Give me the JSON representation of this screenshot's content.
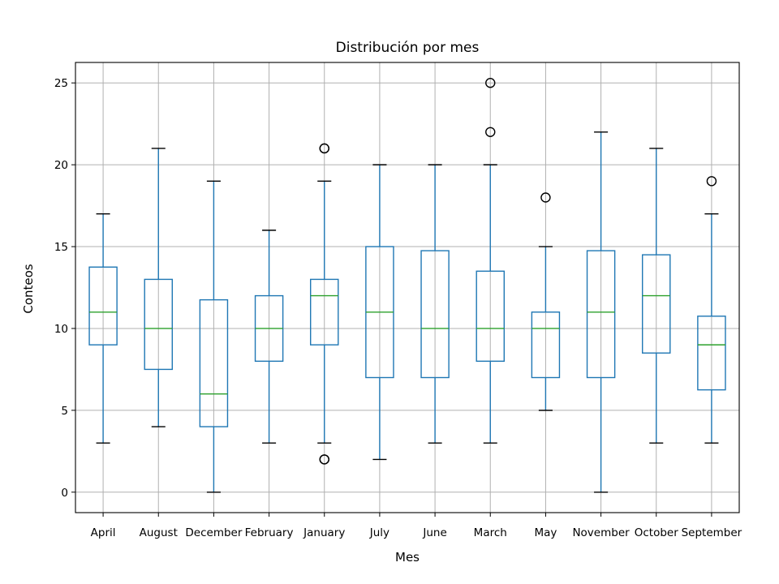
{
  "chart_data": {
    "type": "box",
    "title": "Distribución por mes",
    "xlabel": "Mes",
    "ylabel": "Conteos",
    "ylim": [
      -1.25,
      26.25
    ],
    "yticks": [
      0,
      5,
      10,
      15,
      20,
      25
    ],
    "grid": true,
    "categories": [
      "April",
      "August",
      "December",
      "February",
      "January",
      "July",
      "June",
      "March",
      "May",
      "November",
      "October",
      "September"
    ],
    "boxes": [
      {
        "whisker_low": 3,
        "q1": 9,
        "median": 11,
        "q3": 13.75,
        "whisker_high": 17,
        "outliers": []
      },
      {
        "whisker_low": 4,
        "q1": 7.5,
        "median": 10,
        "q3": 13,
        "whisker_high": 21,
        "outliers": []
      },
      {
        "whisker_low": 0,
        "q1": 4,
        "median": 6,
        "q3": 11.75,
        "whisker_high": 19,
        "outliers": []
      },
      {
        "whisker_low": 3,
        "q1": 8,
        "median": 10,
        "q3": 12,
        "whisker_high": 16,
        "outliers": []
      },
      {
        "whisker_low": 3,
        "q1": 9,
        "median": 12,
        "q3": 13,
        "whisker_high": 19,
        "outliers": [
          21,
          21,
          2,
          2
        ]
      },
      {
        "whisker_low": 2,
        "q1": 7,
        "median": 11,
        "q3": 15,
        "whisker_high": 20,
        "outliers": []
      },
      {
        "whisker_low": 3,
        "q1": 7,
        "median": 10,
        "q3": 14.75,
        "whisker_high": 20,
        "outliers": []
      },
      {
        "whisker_low": 3,
        "q1": 8,
        "median": 10,
        "q3": 13.5,
        "whisker_high": 20,
        "outliers": [
          25,
          22
        ]
      },
      {
        "whisker_low": 5,
        "q1": 7,
        "median": 10,
        "q3": 11,
        "whisker_high": 15,
        "outliers": [
          18
        ]
      },
      {
        "whisker_low": 0,
        "q1": 7,
        "median": 11,
        "q3": 14.75,
        "whisker_high": 22,
        "outliers": []
      },
      {
        "whisker_low": 3,
        "q1": 8.5,
        "median": 12,
        "q3": 14.5,
        "whisker_high": 21,
        "outliers": []
      },
      {
        "whisker_low": 3,
        "q1": 6.25,
        "median": 9,
        "q3": 10.75,
        "whisker_high": 17,
        "outliers": [
          19
        ]
      }
    ],
    "colors": {
      "box": "#1f77b4",
      "median": "#2ca02c",
      "whisker_cap": "#000000",
      "grid": "#b0b0b0",
      "outlier": "#000000"
    }
  }
}
